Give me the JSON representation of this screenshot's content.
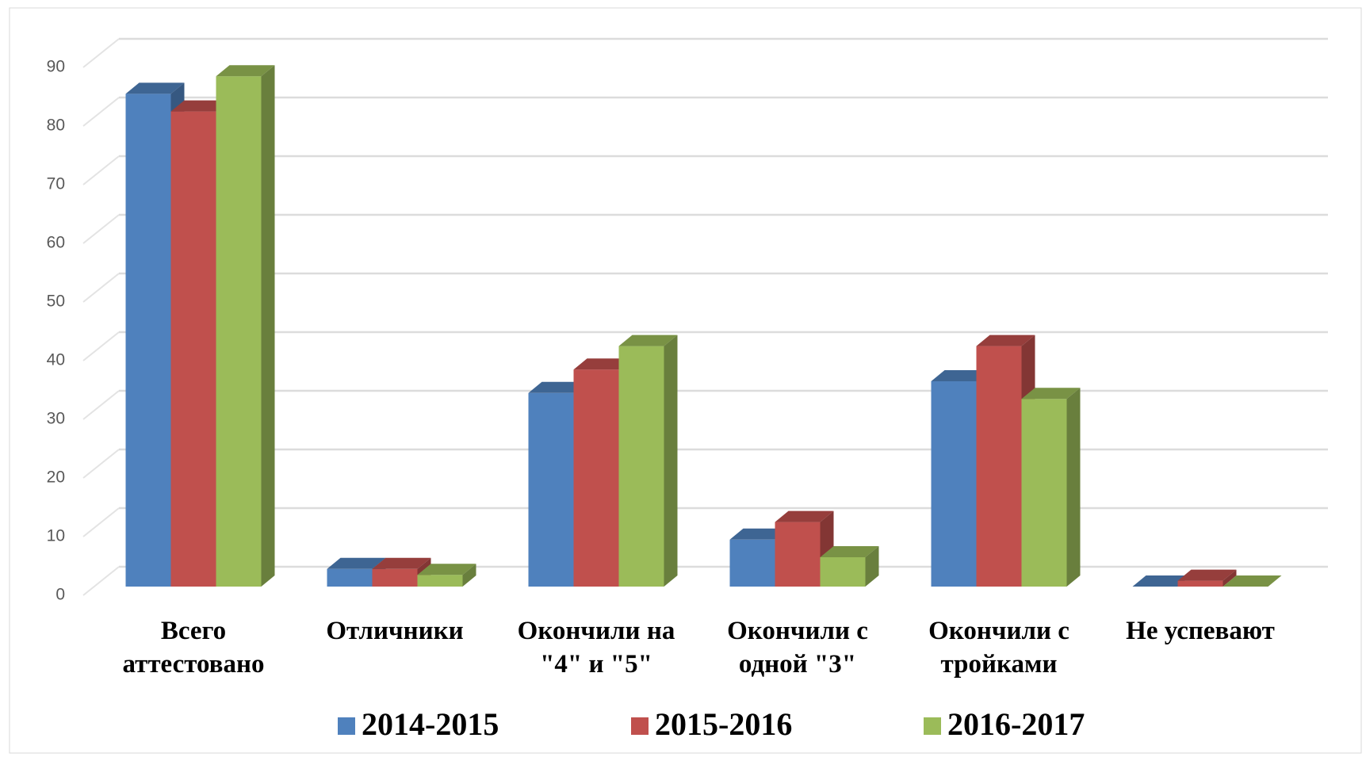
{
  "chart_data": {
    "type": "bar3d",
    "categories": [
      "Всего аттестовано",
      "Отличники",
      "Окончили на \"4\" и \"5\"",
      "Окончили с одной \"3\"",
      "Окончили с тройками",
      "Не успевают"
    ],
    "series": [
      {
        "name": "2014-2015",
        "color": "#4f81bd",
        "values": [
          84,
          3,
          33,
          8,
          35,
          0
        ]
      },
      {
        "name": "2015-2016",
        "color": "#c0504d",
        "values": [
          81,
          3,
          37,
          11,
          41,
          1
        ]
      },
      {
        "name": "2016-2017",
        "color": "#9bbb59",
        "values": [
          87,
          2,
          41,
          5,
          32,
          0
        ]
      }
    ],
    "ylim": [
      0,
      90
    ],
    "yticks": [
      0,
      10,
      20,
      30,
      40,
      50,
      60,
      70,
      80,
      90
    ],
    "grid": true,
    "legend": "bottom"
  }
}
